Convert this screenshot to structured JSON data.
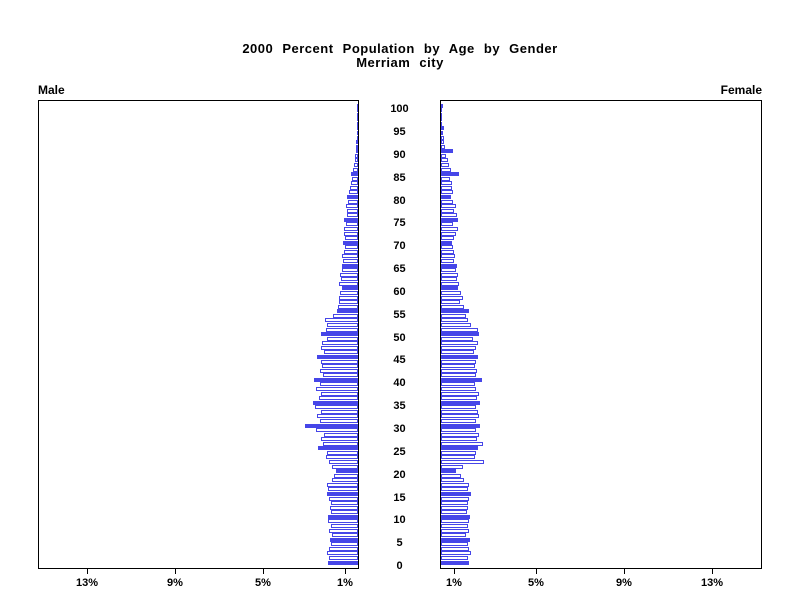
{
  "title": {
    "line1": "2000 Percent Population by Age by Gender",
    "line2": "Merriam city"
  },
  "panels": {
    "male_label": "Male",
    "female_label": "Female"
  },
  "colors": {
    "bar_blue": "#4646E8",
    "frame": "#000000",
    "background": "#FFFFFF"
  },
  "chart_data": {
    "type": "bar",
    "subtype": "population-pyramid",
    "title": "2000 Percent Population by Age by Gender",
    "subtitle": "Merriam city",
    "orientation": "horizontal-mirrored",
    "age_min": 0,
    "age_max": 100,
    "age_axis_labels": [
      0,
      5,
      10,
      15,
      20,
      25,
      30,
      35,
      40,
      45,
      50,
      55,
      60,
      65,
      70,
      75,
      80,
      85,
      90,
      95,
      100
    ],
    "pct_axis_tick_values": [
      13,
      9,
      5,
      1
    ],
    "pct_axis_tick_labels_male": [
      "13%",
      "9%",
      "5%",
      "1%"
    ],
    "pct_axis_tick_labels_female": [
      "1%",
      "5%",
      "9%",
      "13%"
    ],
    "xlim_pct": [
      0,
      15
    ],
    "solid_fill_every_years": 5,
    "grid": false,
    "legend_position": "none",
    "series": [
      {
        "name": "Male",
        "values": [
          1.36,
          1.32,
          1.4,
          1.32,
          1.25,
          1.29,
          1.17,
          1.32,
          1.25,
          1.36,
          1.36,
          1.25,
          1.29,
          1.25,
          1.32,
          1.4,
          1.36,
          1.4,
          1.17,
          1.1,
          1.02,
          1.17,
          1.32,
          1.45,
          1.4,
          1.81,
          1.6,
          1.7,
          1.55,
          1.9,
          2.42,
          1.75,
          1.85,
          1.7,
          1.95,
          2.05,
          1.8,
          1.7,
          1.9,
          1.75,
          2.0,
          1.6,
          1.75,
          1.65,
          1.7,
          1.85,
          1.55,
          1.7,
          1.66,
          1.4,
          1.7,
          1.48,
          1.4,
          1.5,
          1.15,
          0.95,
          0.9,
          0.85,
          0.88,
          0.8,
          0.72,
          0.85,
          0.78,
          0.8,
          0.72,
          0.75,
          0.68,
          0.72,
          0.65,
          0.6,
          0.67,
          0.58,
          0.62,
          0.65,
          0.55,
          0.64,
          0.49,
          0.52,
          0.56,
          0.46,
          0.49,
          0.42,
          0.38,
          0.33,
          0.28,
          0.3,
          0.22,
          0.18,
          0.15,
          0.12,
          0.1,
          0.08,
          0.07,
          0.06,
          0.05,
          0.05,
          0.04,
          0.03,
          0.02,
          0.02,
          0.03
        ]
      },
      {
        "name": "Female",
        "values": [
          1.3,
          1.25,
          1.35,
          1.28,
          1.22,
          1.32,
          1.15,
          1.28,
          1.22,
          1.3,
          1.33,
          1.2,
          1.25,
          1.22,
          1.28,
          1.35,
          1.25,
          1.3,
          1.05,
          0.9,
          0.68,
          1.0,
          1.96,
          1.55,
          1.6,
          1.67,
          1.9,
          1.65,
          1.72,
          1.6,
          1.8,
          1.62,
          1.75,
          1.68,
          1.58,
          1.78,
          1.65,
          1.72,
          1.6,
          1.55,
          1.85,
          1.58,
          1.65,
          1.55,
          1.62,
          1.7,
          1.52,
          1.6,
          1.68,
          1.45,
          1.72,
          1.67,
          1.37,
          1.22,
          1.14,
          1.29,
          1.07,
          0.88,
          0.99,
          0.91,
          0.79,
          0.84,
          0.73,
          0.76,
          0.68,
          0.73,
          0.61,
          0.64,
          0.61,
          0.53,
          0.49,
          0.58,
          0.68,
          0.79,
          0.53,
          0.76,
          0.73,
          0.61,
          0.68,
          0.53,
          0.46,
          0.55,
          0.48,
          0.52,
          0.4,
          0.84,
          0.45,
          0.38,
          0.3,
          0.25,
          0.53,
          0.18,
          0.15,
          0.12,
          0.1,
          0.12,
          0.06,
          0.05,
          0.04,
          0.03,
          0.08
        ]
      }
    ]
  }
}
